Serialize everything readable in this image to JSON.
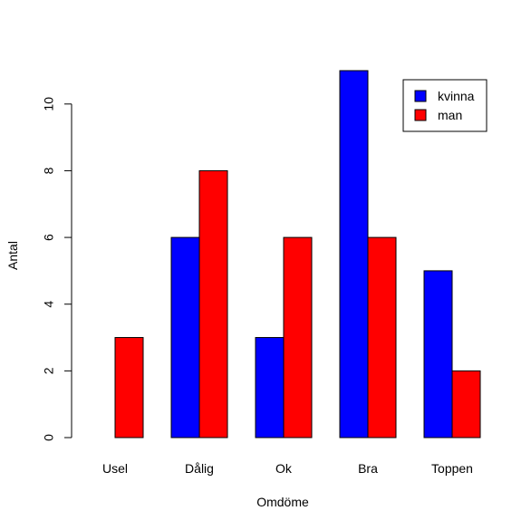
{
  "chart_data": {
    "type": "bar",
    "title": "",
    "xlabel": "Omdöme",
    "ylabel": "Antal",
    "categories": [
      "Usel",
      "Dålig",
      "Ok",
      "Bra",
      "Toppen"
    ],
    "series": [
      {
        "name": "kvinna",
        "color": "#0000ff",
        "values": [
          0,
          6,
          3,
          11,
          5
        ]
      },
      {
        "name": "man",
        "color": "#ff0000",
        "values": [
          3,
          8,
          6,
          6,
          2
        ]
      }
    ],
    "ylim": [
      0,
      11
    ],
    "yticks": [
      "0",
      "2",
      "4",
      "6",
      "8",
      "10"
    ],
    "grid": false,
    "legend_position": "top-right"
  }
}
